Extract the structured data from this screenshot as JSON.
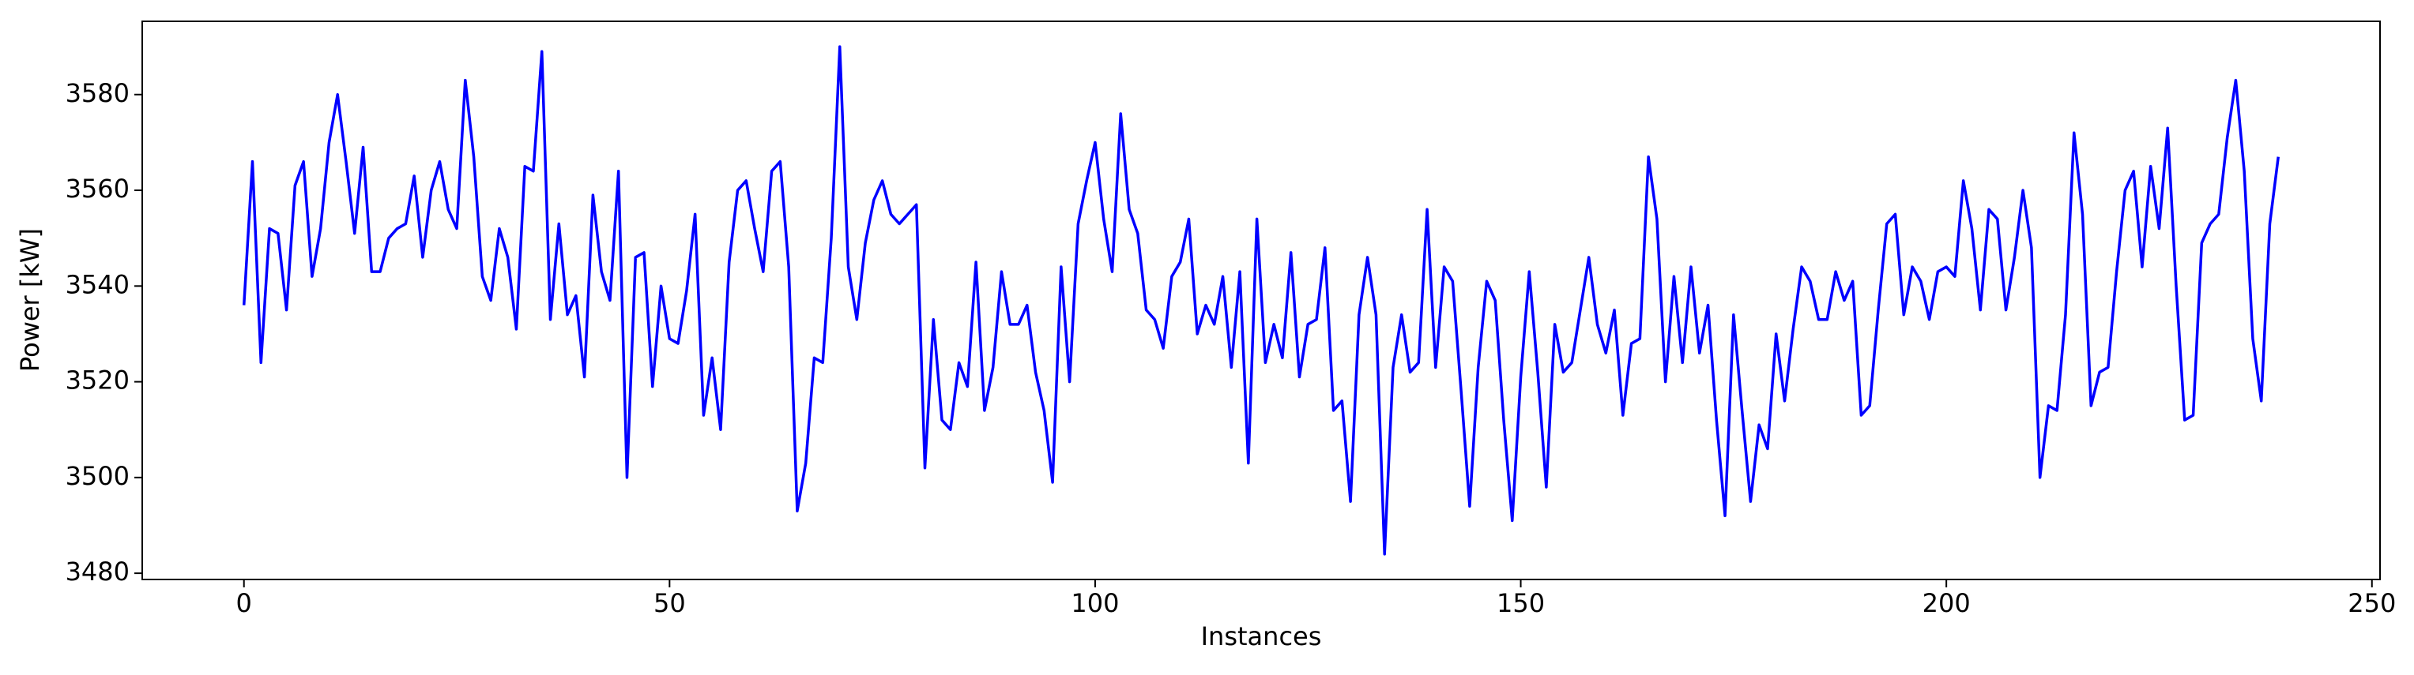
{
  "chart_data": {
    "type": "line",
    "xlabel": "Instances",
    "ylabel": "Power [kW]",
    "xlim": [
      -11.95,
      250.95
    ],
    "ylim": [
      3478.7,
      3595.3
    ],
    "xticks": [
      0,
      50,
      100,
      150,
      200,
      250
    ],
    "yticks": [
      3480,
      3500,
      3520,
      3540,
      3560,
      3580
    ],
    "x": [
      0,
      1,
      2,
      3,
      4,
      5,
      6,
      7,
      8,
      9,
      10,
      11,
      12,
      13,
      14,
      15,
      16,
      17,
      18,
      19,
      20,
      21,
      22,
      23,
      24,
      25,
      26,
      27,
      28,
      29,
      30,
      31,
      32,
      33,
      34,
      35,
      36,
      37,
      38,
      39,
      40,
      41,
      42,
      43,
      44,
      45,
      46,
      47,
      48,
      49,
      50,
      51,
      52,
      53,
      54,
      55,
      56,
      57,
      58,
      59,
      60,
      61,
      62,
      63,
      64,
      65,
      66,
      67,
      68,
      69,
      70,
      71,
      72,
      73,
      74,
      75,
      76,
      77,
      78,
      79,
      80,
      81,
      82,
      83,
      84,
      85,
      86,
      87,
      88,
      89,
      90,
      91,
      92,
      93,
      94,
      95,
      96,
      97,
      98,
      99,
      100,
      101,
      102,
      103,
      104,
      105,
      106,
      107,
      108,
      109,
      110,
      111,
      112,
      113,
      114,
      115,
      116,
      117,
      118,
      119,
      120,
      121,
      122,
      123,
      124,
      125,
      126,
      127,
      128,
      129,
      130,
      131,
      132,
      133,
      134,
      135,
      136,
      137,
      138,
      139,
      140,
      141,
      142,
      143,
      144,
      145,
      146,
      147,
      148,
      149,
      150,
      151,
      152,
      153,
      154,
      155,
      156,
      157,
      158,
      159,
      160,
      161,
      162,
      163,
      164,
      165,
      166,
      167,
      168,
      169,
      170,
      171,
      172,
      173,
      174,
      175,
      176,
      177,
      178,
      179,
      180,
      181,
      182,
      183,
      184,
      185,
      186,
      187,
      188,
      189,
      190,
      191,
      192,
      193,
      194,
      195,
      196,
      197,
      198,
      199,
      200,
      201,
      202,
      203,
      204,
      205,
      206,
      207,
      208,
      209,
      210,
      211,
      212,
      213,
      214,
      215,
      216,
      217,
      218,
      219,
      220,
      221,
      222,
      223,
      224,
      225,
      226,
      227,
      228,
      229,
      230,
      231,
      232,
      233,
      234,
      235,
      236,
      237,
      238,
      239
    ],
    "series": [
      {
        "color": "#0000ff",
        "values": [
          3536,
          3566,
          3524,
          3552,
          3551,
          3535,
          3561,
          3566,
          3542,
          3552,
          3570,
          3580,
          3566,
          3551,
          3569,
          3543,
          3543,
          3550,
          3552,
          3553,
          3563,
          3546,
          3560,
          3566,
          3556,
          3552,
          3583,
          3567,
          3542,
          3537,
          3552,
          3546,
          3531,
          3565,
          3564,
          3589,
          3533,
          3553,
          3534,
          3538,
          3521,
          3559,
          3543,
          3537,
          3564,
          3500,
          3546,
          3547,
          3519,
          3540,
          3529,
          3528,
          3539,
          3555,
          3513,
          3525,
          3510,
          3545,
          3560,
          3562,
          3552,
          3543,
          3564,
          3566,
          3544,
          3493,
          3503,
          3525,
          3524,
          3550,
          3590,
          3544,
          3533,
          3549,
          3558,
          3562,
          3555,
          3553,
          3555,
          3557,
          3502,
          3533,
          3512,
          3510,
          3524,
          3519,
          3545,
          3514,
          3523,
          3543,
          3532,
          3532,
          3536,
          3522,
          3514,
          3499,
          3544,
          3520,
          3553,
          3562,
          3570,
          3554,
          3543,
          3576,
          3556,
          3551,
          3535,
          3533,
          3527,
          3542,
          3545,
          3554,
          3530,
          3536,
          3532,
          3542,
          3523,
          3543,
          3503,
          3554,
          3524,
          3532,
          3525,
          3547,
          3521,
          3532,
          3533,
          3548,
          3514,
          3516,
          3495,
          3534,
          3546,
          3534,
          3484,
          3523,
          3534,
          3522,
          3524,
          3556,
          3523,
          3544,
          3541,
          3518,
          3494,
          3523,
          3541,
          3537,
          3512,
          3491,
          3521,
          3543,
          3522,
          3498,
          3532,
          3522,
          3524,
          3535,
          3546,
          3532,
          3526,
          3535,
          3513,
          3528,
          3529,
          3567,
          3554,
          3520,
          3542,
          3524,
          3544,
          3526,
          3536,
          3512,
          3492,
          3534,
          3514,
          3495,
          3511,
          3506,
          3530,
          3516,
          3531,
          3544,
          3541,
          3533,
          3533,
          3543,
          3537,
          3541,
          3513,
          3515,
          3535,
          3553,
          3555,
          3534,
          3544,
          3541,
          3533,
          3543,
          3544,
          3542,
          3562,
          3552,
          3535,
          3556,
          3554,
          3535,
          3546,
          3560,
          3548,
          3500,
          3515,
          3514,
          3534,
          3572,
          3555,
          3515,
          3522,
          3523,
          3543,
          3560,
          3564,
          3544,
          3565,
          3552,
          3573,
          3540,
          3512,
          3513,
          3549,
          3553,
          3555,
          3571,
          3583,
          3564,
          3529,
          3516,
          3553,
          3567
        ]
      }
    ]
  }
}
